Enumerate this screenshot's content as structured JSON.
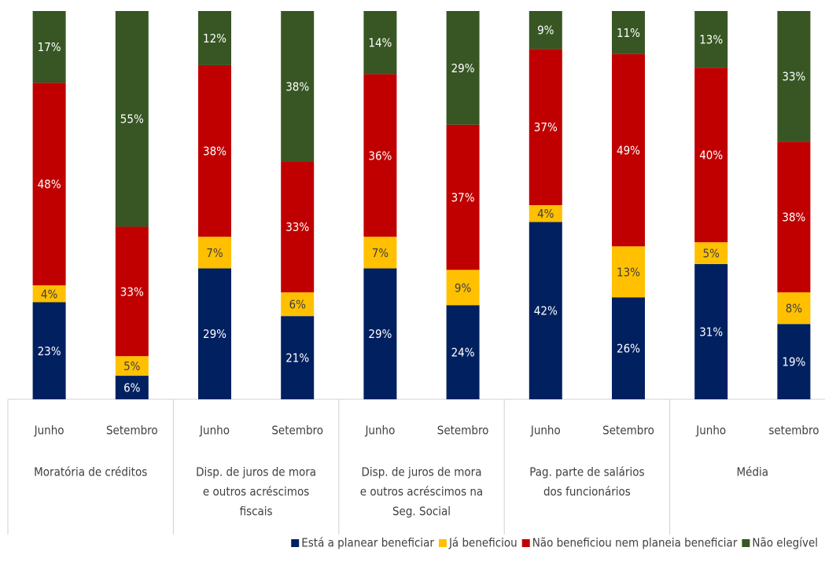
{
  "chart_data": {
    "type": "bar",
    "stacking": "percent",
    "categories": [
      "Junho",
      "Setembro",
      "Junho",
      "Setembro",
      "Junho",
      "Setembro",
      "Junho",
      "Setembro",
      "Junho",
      "setembro"
    ],
    "groups": [
      [
        "Moratória de créditos"
      ],
      [
        "Disp. de juros de mora",
        "e outros acréscimos",
        "fiscais"
      ],
      [
        "Disp. de juros de mora",
        "e outros acréscimos na",
        "Seg. Social"
      ],
      [
        "Pag.  parte de salários",
        "dos funcionários"
      ],
      [
        "Média"
      ]
    ],
    "series": [
      {
        "name": "Está a planear beneficiar",
        "color": "#002060",
        "label_color": "#ffffff",
        "values": [
          23,
          6,
          29,
          21,
          29,
          24,
          42,
          26,
          31,
          19
        ],
        "value_labels": [
          "23%",
          "6%",
          "29%",
          "21%",
          "29%",
          "24%",
          "42%",
          "26%",
          "31%",
          "19%"
        ]
      },
      {
        "name": "Já beneficiou",
        "color": "#ffc000",
        "label_color": "#404040",
        "values": [
          4,
          5,
          7,
          6,
          7,
          9,
          4,
          13,
          5,
          8
        ],
        "value_labels": [
          "4%",
          "5%",
          "7%",
          "6%",
          "7%",
          "9%",
          "4%",
          "13%",
          "5%",
          "8%"
        ]
      },
      {
        "name": "Não beneficiou nem planeia beneficiar",
        "color": "#c00000",
        "label_color": "#ffffff",
        "values": [
          48,
          33,
          38,
          33,
          36,
          37,
          37,
          49,
          40,
          38
        ],
        "value_labels": [
          "48%",
          "33%",
          "38%",
          "33%",
          "36%",
          "37%",
          "37%",
          "49%",
          "40%",
          "38%"
        ]
      },
      {
        "name": "Não elegível",
        "color": "#375623",
        "label_color": "#ffffff",
        "values": [
          17,
          55,
          12,
          38,
          14,
          29,
          9,
          11,
          13,
          33
        ],
        "value_labels": [
          "17%",
          "55%",
          "12%",
          "38%",
          "14%",
          "29%",
          "9%",
          "11%",
          "13%",
          "33%"
        ]
      }
    ]
  }
}
